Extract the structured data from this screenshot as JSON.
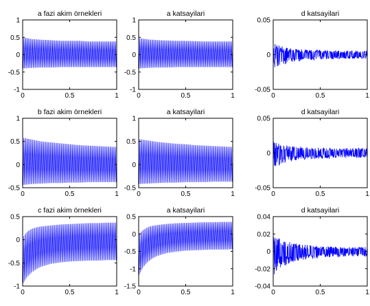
{
  "figure": {
    "background": "#ffffff",
    "line_color": "#0000ff",
    "axes_color": "#000000"
  },
  "chart_data": [
    {
      "type": "line",
      "title": "a fazi akim örnekleri",
      "xlim": [
        0,
        1
      ],
      "ylim": [
        -1,
        1
      ],
      "x_ticks": [
        0,
        0.5,
        1
      ],
      "x_tick_labels": [
        "0",
        "0.5",
        "1"
      ],
      "y_ticks": [
        -1,
        -0.5,
        0,
        0.5,
        1
      ],
      "y_tick_labels": [
        "-1",
        "-0.5",
        "0",
        "0.5",
        "1"
      ],
      "grid": false,
      "series": [
        {
          "x": [
            0,
            0.1,
            0.2,
            0.3,
            0.4,
            0.5,
            0.6,
            0.7,
            0.8,
            0.9,
            1.0
          ],
          "upper": [
            0.5,
            0.45,
            0.43,
            0.42,
            0.4,
            0.4,
            0.4,
            0.38,
            0.38,
            0.38,
            0.38
          ],
          "lower": [
            -0.4,
            -0.38,
            -0.37,
            -0.37,
            -0.36,
            -0.36,
            -0.36,
            -0.36,
            -0.36,
            -0.36,
            -0.36
          ]
        }
      ]
    },
    {
      "type": "line",
      "title": "a katsayilari",
      "xlim": [
        0,
        1
      ],
      "ylim": [
        -1,
        1
      ],
      "x_ticks": [
        0,
        0.5,
        1
      ],
      "x_tick_labels": [
        "0",
        "0.5",
        "1"
      ],
      "y_ticks": [
        -1,
        -0.5,
        0,
        0.5,
        1
      ],
      "y_tick_labels": [
        "-1",
        "-0.5",
        "0",
        "0.5",
        "1"
      ],
      "grid": false,
      "series": [
        {
          "x": [
            0,
            0.1,
            0.2,
            0.3,
            0.4,
            0.5,
            0.6,
            0.7,
            0.8,
            0.9,
            1.0
          ],
          "upper": [
            0.48,
            0.44,
            0.42,
            0.41,
            0.4,
            0.4,
            0.39,
            0.38,
            0.38,
            0.38,
            0.38
          ],
          "lower": [
            -0.4,
            -0.38,
            -0.37,
            -0.37,
            -0.36,
            -0.36,
            -0.36,
            -0.36,
            -0.36,
            -0.36,
            -0.36
          ]
        }
      ]
    },
    {
      "type": "line",
      "title": "d katsayilari",
      "xlim": [
        0,
        1
      ],
      "ylim": [
        -0.05,
        0.05
      ],
      "x_ticks": [
        0,
        0.5,
        1
      ],
      "x_tick_labels": [
        "0",
        "0.5",
        "1"
      ],
      "y_ticks": [
        -0.05,
        0,
        0.05
      ],
      "y_tick_labels": [
        "-0.05",
        "0",
        "0.05"
      ],
      "grid": false,
      "series": [
        {
          "x": [
            0,
            0.1,
            0.2,
            0.3,
            0.4,
            0.5,
            0.6,
            0.7,
            0.8,
            0.9,
            1.0
          ],
          "upper": [
            0.016,
            0.012,
            0.009,
            0.008,
            0.007,
            0.007,
            0.006,
            0.006,
            0.006,
            0.006,
            0.006
          ],
          "lower": [
            -0.02,
            -0.015,
            -0.011,
            -0.009,
            -0.008,
            -0.007,
            -0.007,
            -0.006,
            -0.006,
            -0.006,
            -0.006
          ]
        }
      ]
    },
    {
      "type": "line",
      "title": "b fazi akim örnekleri",
      "xlim": [
        0,
        1
      ],
      "ylim": [
        -0.5,
        1
      ],
      "x_ticks": [
        0,
        0.5,
        1
      ],
      "x_tick_labels": [
        "0",
        "0.5",
        "1"
      ],
      "y_ticks": [
        -0.5,
        0,
        0.5,
        1
      ],
      "y_tick_labels": [
        "-0.5",
        "0",
        "0.5",
        "1"
      ],
      "grid": false,
      "series": [
        {
          "x": [
            0,
            0.1,
            0.2,
            0.3,
            0.4,
            0.5,
            0.6,
            0.7,
            0.8,
            0.9,
            1.0
          ],
          "upper": [
            0.58,
            0.54,
            0.5,
            0.48,
            0.46,
            0.44,
            0.42,
            0.41,
            0.4,
            0.39,
            0.38
          ],
          "lower": [
            -0.44,
            -0.42,
            -0.41,
            -0.4,
            -0.4,
            -0.39,
            -0.39,
            -0.38,
            -0.38,
            -0.38,
            -0.38
          ]
        }
      ]
    },
    {
      "type": "line",
      "title": "a katsayilari",
      "xlim": [
        0,
        1
      ],
      "ylim": [
        -0.5,
        1
      ],
      "x_ticks": [
        0,
        0.5,
        1
      ],
      "x_tick_labels": [
        "0",
        "0.5",
        "1"
      ],
      "y_ticks": [
        -0.5,
        0,
        0.5,
        1
      ],
      "y_tick_labels": [
        "-0.5",
        "0",
        "0.5",
        "1"
      ],
      "grid": false,
      "series": [
        {
          "x": [
            0,
            0.1,
            0.2,
            0.3,
            0.4,
            0.5,
            0.6,
            0.7,
            0.8,
            0.9,
            1.0
          ],
          "upper": [
            0.55,
            0.52,
            0.49,
            0.47,
            0.45,
            0.44,
            0.42,
            0.41,
            0.4,
            0.39,
            0.38
          ],
          "lower": [
            -0.42,
            -0.41,
            -0.4,
            -0.39,
            -0.39,
            -0.38,
            -0.38,
            -0.38,
            -0.37,
            -0.37,
            -0.37
          ]
        }
      ]
    },
    {
      "type": "line",
      "title": "d katsayilari",
      "xlim": [
        0,
        1
      ],
      "ylim": [
        -0.05,
        0.05
      ],
      "x_ticks": [
        0,
        0.5,
        1
      ],
      "x_tick_labels": [
        "0",
        "0.5",
        "1"
      ],
      "y_ticks": [
        -0.05,
        0,
        0.05
      ],
      "y_tick_labels": [
        "-0.05",
        "0",
        "0.05"
      ],
      "grid": false,
      "series": [
        {
          "x": [
            0,
            0.1,
            0.2,
            0.3,
            0.4,
            0.5,
            0.6,
            0.7,
            0.8,
            0.9,
            1.0
          ],
          "upper": [
            0.016,
            0.012,
            0.01,
            0.009,
            0.008,
            0.008,
            0.007,
            0.007,
            0.007,
            0.007,
            0.007
          ],
          "lower": [
            -0.022,
            -0.016,
            -0.012,
            -0.01,
            -0.009,
            -0.008,
            -0.008,
            -0.007,
            -0.007,
            -0.007,
            -0.007
          ]
        }
      ]
    },
    {
      "type": "line",
      "title": "c fazi akim örnekleri",
      "xlim": [
        0,
        1
      ],
      "ylim": [
        -1,
        0.5
      ],
      "x_ticks": [
        0,
        0.5,
        1
      ],
      "x_tick_labels": [
        "0",
        "0.5",
        "1"
      ],
      "y_ticks": [
        -1,
        -0.5,
        0,
        0.5
      ],
      "y_tick_labels": [
        "-1",
        "-0.5",
        "0",
        "0.5"
      ],
      "grid": false,
      "series": [
        {
          "x": [
            0,
            0.05,
            0.1,
            0.15,
            0.2,
            0.3,
            0.4,
            0.5,
            0.6,
            0.7,
            0.8,
            0.9,
            1.0
          ],
          "upper": [
            0.05,
            0.18,
            0.24,
            0.27,
            0.29,
            0.31,
            0.33,
            0.34,
            0.35,
            0.36,
            0.36,
            0.37,
            0.37
          ],
          "lower": [
            -0.95,
            -0.8,
            -0.7,
            -0.63,
            -0.58,
            -0.52,
            -0.49,
            -0.47,
            -0.46,
            -0.45,
            -0.45,
            -0.44,
            -0.44
          ]
        }
      ]
    },
    {
      "type": "line",
      "title": "a katsayilari",
      "xlim": [
        0,
        1
      ],
      "ylim": [
        -1.5,
        0.5
      ],
      "x_ticks": [
        0,
        0.5,
        1
      ],
      "x_tick_labels": [
        "0",
        "0.5",
        "1"
      ],
      "y_ticks": [
        -1.5,
        -1,
        -0.5,
        0,
        0.5
      ],
      "y_tick_labels": [
        "-1.5",
        "-1",
        "-0.5",
        "0",
        "0.5"
      ],
      "grid": false,
      "series": [
        {
          "x": [
            0,
            0.05,
            0.1,
            0.15,
            0.2,
            0.3,
            0.4,
            0.5,
            0.6,
            0.7,
            0.8,
            0.9,
            1.0
          ],
          "upper": [
            0.0,
            0.12,
            0.2,
            0.24,
            0.26,
            0.29,
            0.31,
            0.32,
            0.33,
            0.34,
            0.34,
            0.35,
            0.35
          ],
          "lower": [
            -1.2,
            -0.95,
            -0.8,
            -0.7,
            -0.63,
            -0.55,
            -0.51,
            -0.48,
            -0.47,
            -0.46,
            -0.45,
            -0.45,
            -0.44
          ]
        }
      ]
    },
    {
      "type": "line",
      "title": "d katsayilari",
      "xlim": [
        0,
        1
      ],
      "ylim": [
        -0.04,
        0.04
      ],
      "x_ticks": [
        0,
        0.5,
        1
      ],
      "x_tick_labels": [
        "0",
        "0.5",
        "1"
      ],
      "y_ticks": [
        -0.04,
        -0.02,
        0,
        0.02,
        0.04
      ],
      "y_tick_labels": [
        "-0.04",
        "-0.02",
        "0",
        "0.02",
        "0.04"
      ],
      "grid": false,
      "series": [
        {
          "x": [
            0,
            0.05,
            0.1,
            0.2,
            0.3,
            0.4,
            0.5,
            0.6,
            0.7,
            0.8,
            0.9,
            1.0
          ],
          "upper": [
            0.018,
            0.016,
            0.013,
            0.01,
            0.008,
            0.007,
            0.006,
            0.006,
            0.005,
            0.005,
            0.005,
            0.005
          ],
          "lower": [
            -0.03,
            -0.022,
            -0.018,
            -0.013,
            -0.01,
            -0.009,
            -0.008,
            -0.007,
            -0.007,
            -0.006,
            -0.006,
            -0.006
          ]
        }
      ]
    }
  ]
}
